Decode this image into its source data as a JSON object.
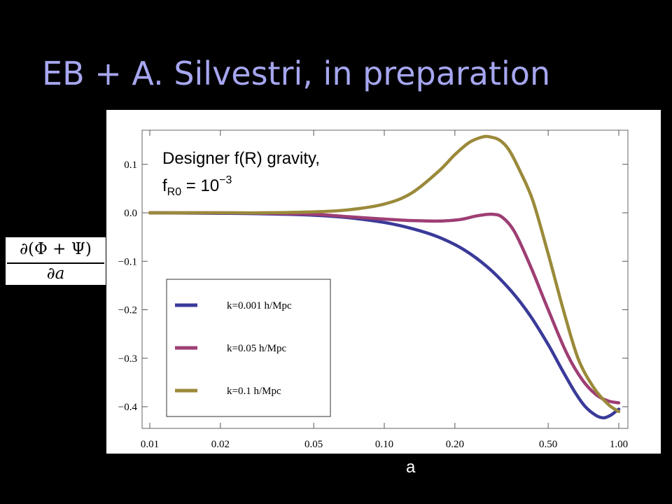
{
  "slide_title": "EB + A. Silvestri, in preparation",
  "y_axis_label": {
    "numerator": "∂(Φ + Ψ)",
    "denominator": "∂a"
  },
  "x_axis_label": "a",
  "annotation": {
    "line1": "Designer f(R) gravity,",
    "line2_prefix": "f",
    "line2_sub": "R0",
    "line2_mid": " = 10",
    "line2_sup": "−3"
  },
  "chart_data": {
    "type": "line",
    "xscale": "log",
    "xlim": [
      0.01,
      1.0
    ],
    "ylim": [
      -0.42,
      0.16
    ],
    "x_ticks": [
      0.01,
      0.02,
      0.05,
      0.1,
      0.2,
      0.5,
      1.0
    ],
    "x_tick_labels": [
      "0.01",
      "0.02",
      "0.05",
      "0.10",
      "0.20",
      "0.50",
      "1.00"
    ],
    "y_ticks": [
      0.1,
      0.0,
      -0.1,
      -0.2,
      -0.3,
      -0.4
    ],
    "y_tick_labels": [
      "0.1",
      "0.0",
      "−0.1",
      "−0.2",
      "−0.3",
      "−0.4"
    ],
    "grid": false,
    "legend_position": "lower-left",
    "series": [
      {
        "name": "k=0.001 h/Mpc",
        "color": "#3a3a9a",
        "x": [
          0.01,
          0.02,
          0.03,
          0.05,
          0.07,
          0.1,
          0.13,
          0.17,
          0.22,
          0.28,
          0.35,
          0.42,
          0.5,
          0.57,
          0.65,
          0.72,
          0.8,
          0.86,
          0.92,
          0.97,
          1.0
        ],
        "y": [
          0.0,
          -0.001,
          -0.002,
          -0.005,
          -0.01,
          -0.02,
          -0.032,
          -0.05,
          -0.077,
          -0.115,
          -0.163,
          -0.213,
          -0.272,
          -0.322,
          -0.37,
          -0.4,
          -0.418,
          -0.423,
          -0.418,
          -0.41,
          -0.405
        ]
      },
      {
        "name": "k=0.05 h/Mpc",
        "color": "#9e3e74",
        "x": [
          0.01,
          0.02,
          0.03,
          0.05,
          0.07,
          0.1,
          0.13,
          0.17,
          0.21,
          0.25,
          0.29,
          0.32,
          0.36,
          0.42,
          0.5,
          0.6,
          0.7,
          0.8,
          0.9,
          1.0
        ],
        "y": [
          0.0,
          0.0,
          -0.001,
          -0.003,
          -0.008,
          -0.013,
          -0.016,
          -0.017,
          -0.014,
          -0.006,
          -0.003,
          -0.01,
          -0.04,
          -0.11,
          -0.2,
          -0.29,
          -0.345,
          -0.375,
          -0.388,
          -0.392
        ]
      },
      {
        "name": "k=0.1 h/Mpc",
        "color": "#9a8a3a",
        "x": [
          0.01,
          0.02,
          0.03,
          0.05,
          0.07,
          0.1,
          0.13,
          0.17,
          0.2,
          0.23,
          0.26,
          0.28,
          0.31,
          0.34,
          0.38,
          0.43,
          0.5,
          0.58,
          0.67,
          0.78,
          0.9,
          1.0
        ],
        "y": [
          0.0,
          0.0,
          0.0,
          0.002,
          0.006,
          0.018,
          0.04,
          0.085,
          0.12,
          0.145,
          0.156,
          0.157,
          0.15,
          0.13,
          0.085,
          0.025,
          -0.085,
          -0.2,
          -0.3,
          -0.36,
          -0.395,
          -0.41
        ]
      }
    ]
  }
}
